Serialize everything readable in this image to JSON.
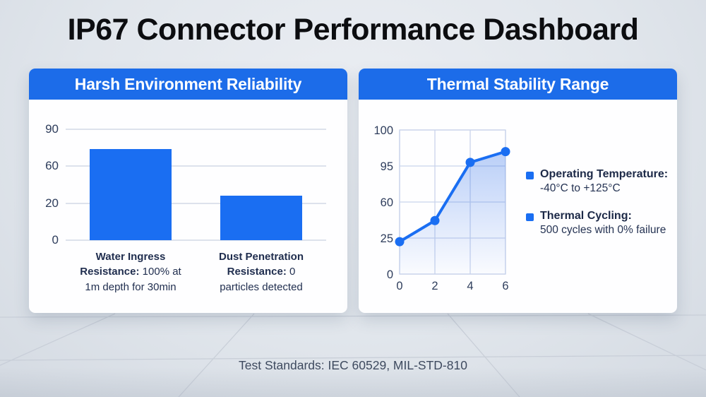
{
  "title": "IP67 Connector Performance Dashboard",
  "footer": "Test Standards: IEC 60529, MIL-STD-810",
  "colors": {
    "accent_blue": "#1a6ef2",
    "header_blue": "#1c6ce9",
    "navy_text": "#1f2d4e",
    "bar_gridline": "#dde2ec",
    "line_gridline": "#c9d4ec"
  },
  "left_panel": {
    "header": "Harsh Environment Reliability",
    "bar_labels": [
      {
        "bold": "Water Ingress Resistance:",
        "regular": "100% at 1m depth for 30min"
      },
      {
        "bold": "Dust Penetration Resistance:",
        "regular": "0 particles detected"
      }
    ]
  },
  "right_panel": {
    "header": "Thermal Stability Range",
    "legend": [
      {
        "title": "Operating Temperature:",
        "detail": "-40°C to +125°C"
      },
      {
        "title": "Thermal Cycling:",
        "detail": "500 cycles with 0% failure"
      }
    ]
  },
  "chart_data": [
    {
      "type": "bar",
      "title": "Harsh Environment Reliability",
      "categories": [
        "Water Ingress Resistance: 100% at 1m depth for 30min",
        "Dust Penetration Resistance: 0 particles detected"
      ],
      "values": [
        74,
        28
      ],
      "yticks": [
        0,
        20,
        60,
        90
      ],
      "ylim": [
        0,
        90
      ],
      "yticks_evenly_spaced": true,
      "grid": "horizontal",
      "bar_color": "#1a6ef2"
    },
    {
      "type": "line",
      "title": "Thermal Stability Range",
      "x": [
        0,
        2,
        4,
        6
      ],
      "series": [
        {
          "name": "Thermal Stability",
          "values": [
            22.5,
            42,
            95.5,
            97
          ]
        }
      ],
      "yticks": [
        0,
        25,
        60,
        95,
        100
      ],
      "xticks": [
        0,
        2,
        4,
        6
      ],
      "yticks_evenly_spaced": true,
      "grid": "both",
      "area_fill": true,
      "line_color": "#1a6ef2",
      "legend_position": "right"
    }
  ]
}
